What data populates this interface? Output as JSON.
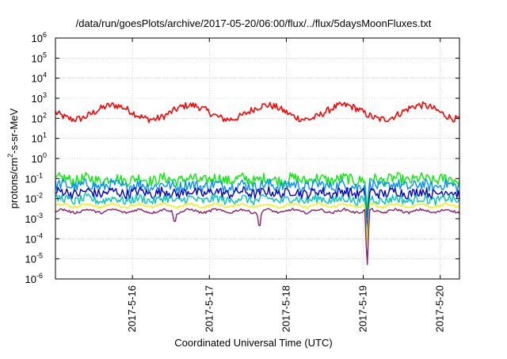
{
  "chart_data": {
    "type": "line",
    "title": "/data/run/goesPlots/archive/2017-05-20/06:00/flux/../flux/5daysMoonFluxes.txt",
    "xlabel": "Coordinated Universal Time (UTC)",
    "ylabel_parts": {
      "pre": "protons/cm",
      "sup": "2",
      "post": "-s-sr-MeV"
    },
    "yscale": "log",
    "ylim": [
      1e-06,
      1000000.0
    ],
    "yticks": [
      {
        "label": "10",
        "exp": "-6",
        "value": 1e-06
      },
      {
        "label": "10",
        "exp": "-5",
        "value": 1e-05
      },
      {
        "label": "10",
        "exp": "-4",
        "value": 0.0001
      },
      {
        "label": "10",
        "exp": "-3",
        "value": 0.001
      },
      {
        "label": "10",
        "exp": "-2",
        "value": 0.01
      },
      {
        "label": "10",
        "exp": "-1",
        "value": 0.1
      },
      {
        "label": "10",
        "exp": "0",
        "value": 1
      },
      {
        "label": "10",
        "exp": "1",
        "value": 10
      },
      {
        "label": "10",
        "exp": "2",
        "value": 100
      },
      {
        "label": "10",
        "exp": "3",
        "value": 1000
      },
      {
        "label": "10",
        "exp": "4",
        "value": 10000
      },
      {
        "label": "10",
        "exp": "5",
        "value": 100000
      },
      {
        "label": "10",
        "exp": "6",
        "value": 1000000
      }
    ],
    "xlim": [
      "2017-05-15 00:00",
      "2017-05-20 06:00"
    ],
    "xticks": [
      "2017-5-16",
      "2017-5-17",
      "2017-5-18",
      "2017-5-19",
      "2017-5-20"
    ],
    "grid": true,
    "series": [
      {
        "color": "#ff0000",
        "base": 200,
        "noise": 0.35,
        "dips": []
      },
      {
        "color": "#00ee00",
        "base": 0.09,
        "noise": 0.28,
        "dips": [
          {
            "t": 4.05,
            "v": 0.002
          }
        ]
      },
      {
        "color": "#0090ff",
        "base": 0.045,
        "noise": 0.28,
        "dips": [
          {
            "t": 4.05,
            "v": 0.0008
          }
        ]
      },
      {
        "color": "#0000cc",
        "base": 0.02,
        "noise": 0.25,
        "dips": [
          {
            "t": 4.05,
            "v": 0.0002
          }
        ]
      },
      {
        "color": "#00c8b4",
        "base": 0.009,
        "noise": 0.22,
        "dips": [
          {
            "t": 4.05,
            "v": 0.0001
          }
        ]
      },
      {
        "color": "#f0f000",
        "base": 0.0045,
        "noise": 0.06,
        "dips": [
          {
            "t": 4.05,
            "v": 5e-05
          }
        ]
      },
      {
        "color": "#8c1e6e",
        "base": 0.0024,
        "noise": 0.06,
        "dips": [
          {
            "t": 1.55,
            "v": 0.0005
          },
          {
            "t": 2.65,
            "v": 0.00025
          },
          {
            "t": 4.05,
            "v": 3e-06
          }
        ]
      }
    ]
  }
}
